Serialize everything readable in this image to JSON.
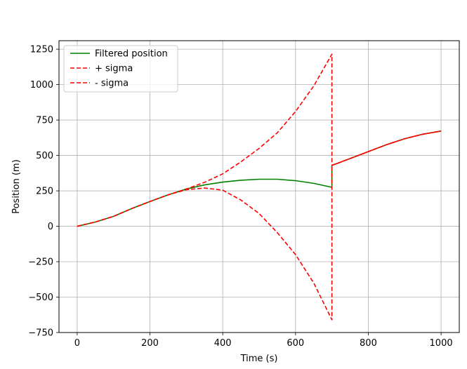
{
  "chart_data": {
    "type": "line",
    "title": "",
    "xlabel": "Time (s)",
    "ylabel": "Position (m)",
    "xlim": [
      -50,
      1050
    ],
    "ylim": [
      -750,
      1310
    ],
    "xticks": [
      0,
      200,
      400,
      600,
      800,
      1000
    ],
    "yticks": [
      -750,
      -500,
      -250,
      0,
      250,
      500,
      750,
      1000,
      1250
    ],
    "xtick_labels": [
      "0",
      "200",
      "400",
      "600",
      "800",
      "1000"
    ],
    "ytick_labels": [
      "−750",
      "−500",
      "−250",
      "0",
      "250",
      "500",
      "750",
      "1000",
      "1250"
    ],
    "grid": true,
    "legend_position": "top-left",
    "series": [
      {
        "name": "Filtered position",
        "color": "#008000",
        "style": "solid",
        "x": [
          0,
          50,
          100,
          150,
          200,
          250,
          300,
          350,
          400,
          450,
          500,
          550,
          600,
          650,
          700,
          700,
          750,
          800,
          850,
          900,
          950,
          1000
        ],
        "y": [
          0,
          30,
          70,
          125,
          175,
          222,
          263,
          292,
          312,
          325,
          332,
          332,
          322,
          303,
          275,
          430,
          478,
          527,
          576,
          618,
          650,
          672
        ]
      },
      {
        "name": "+ sigma",
        "color": "#ff0000",
        "style": "dashed",
        "x": [
          0,
          50,
          100,
          150,
          200,
          250,
          300,
          350,
          400,
          450,
          500,
          550,
          600,
          650,
          700,
          700,
          750,
          800,
          850,
          900,
          950,
          1000
        ],
        "y": [
          0,
          30,
          70,
          125,
          175,
          222,
          263,
          310,
          370,
          455,
          550,
          660,
          810,
          990,
          1215,
          430,
          478,
          527,
          576,
          618,
          650,
          672
        ]
      },
      {
        "name": "- sigma",
        "color": "#ff0000",
        "style": "dashed",
        "x": [
          0,
          50,
          100,
          150,
          200,
          250,
          300,
          350,
          400,
          450,
          500,
          550,
          600,
          650,
          700,
          700,
          750,
          800,
          850,
          900,
          950,
          1000
        ],
        "y": [
          0,
          30,
          70,
          125,
          175,
          222,
          258,
          270,
          255,
          185,
          90,
          -45,
          -200,
          -400,
          -660,
          430,
          478,
          527,
          576,
          618,
          650,
          672
        ]
      }
    ]
  }
}
